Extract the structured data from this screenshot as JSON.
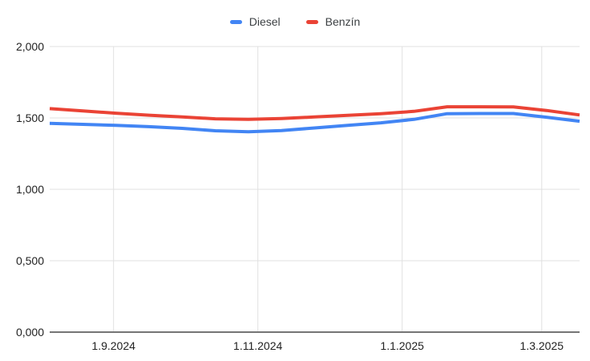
{
  "chart_data": {
    "type": "line",
    "x": [
      "5.8.2024",
      "19.8.2024",
      "2.9.2024",
      "16.9.2024",
      "30.9.2024",
      "14.10.2024",
      "28.10.2024",
      "11.11.2024",
      "25.11.2024",
      "9.12.2024",
      "23.12.2024",
      "6.1.2025",
      "20.1.2025",
      "3.2.2025",
      "17.2.2025",
      "3.3.2025",
      "17.3.2025"
    ],
    "series": [
      {
        "name": "Diesel",
        "color": "#4285F4",
        "values": [
          1.462,
          1.455,
          1.448,
          1.439,
          1.427,
          1.41,
          1.403,
          1.412,
          1.43,
          1.448,
          1.466,
          1.49,
          1.53,
          1.531,
          1.531,
          1.505,
          1.477
        ]
      },
      {
        "name": "Benzín",
        "color": "#EA4335",
        "values": [
          1.565,
          1.549,
          1.533,
          1.519,
          1.507,
          1.494,
          1.49,
          1.496,
          1.507,
          1.518,
          1.53,
          1.546,
          1.578,
          1.578,
          1.577,
          1.552,
          1.521
        ]
      }
    ],
    "ylim": [
      0,
      2
    ],
    "y_ticks": [
      {
        "value": 0,
        "label": "0,000"
      },
      {
        "value": 0.5,
        "label": "0,500"
      },
      {
        "value": 1,
        "label": "1,000"
      },
      {
        "value": 1.5,
        "label": "1,500"
      },
      {
        "value": 2,
        "label": "2,000"
      }
    ],
    "x_ticks": [
      "1.9.2024",
      "1.11.2024",
      "1.1.2025",
      "1.3.2025"
    ],
    "legend_position": "top",
    "grid": true
  },
  "colors": {
    "gridline": "#e0e0e0",
    "axis": "#757575",
    "tick_text": "#222222",
    "legend_text": "#3c4043",
    "background": "#ffffff"
  }
}
